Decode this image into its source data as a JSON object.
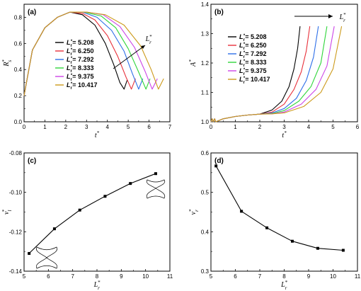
{
  "chart_data": [
    {
      "panel": "(a)",
      "type": "line",
      "xlabel": "t*",
      "ylabel": "Rs*",
      "xlim": [
        0,
        7
      ],
      "ylim": [
        0,
        0.9
      ],
      "xticks": [
        "0",
        "1",
        "2",
        "3",
        "4",
        "5",
        "6",
        "7"
      ],
      "yticks": [
        "0.0",
        "0.2",
        "0.4",
        "0.6",
        "0.8"
      ],
      "annotation": "Lr*",
      "legend_placement": "center-right",
      "series": [
        {
          "name": "Lr* = 5.208",
          "color": "#000000",
          "x": [
            0,
            0.4,
            1.0,
            1.6,
            2.2,
            2.8,
            3.4,
            3.9,
            4.3,
            4.6,
            4.8,
            4.95
          ],
          "y": [
            0.2,
            0.55,
            0.72,
            0.8,
            0.84,
            0.82,
            0.74,
            0.6,
            0.44,
            0.3,
            0.25,
            0.32
          ]
        },
        {
          "name": "Lr* = 6.250",
          "color": "#e8303a",
          "x": [
            0,
            0.4,
            1.0,
            1.6,
            2.2,
            2.8,
            3.4,
            4.0,
            4.5,
            4.9,
            5.15,
            5.35
          ],
          "y": [
            0.2,
            0.55,
            0.72,
            0.8,
            0.84,
            0.83,
            0.78,
            0.66,
            0.5,
            0.34,
            0.25,
            0.33
          ]
        },
        {
          "name": "Lr* = 7.292",
          "color": "#2d6ee8",
          "x": [
            0,
            0.4,
            1.0,
            1.6,
            2.2,
            2.8,
            3.5,
            4.2,
            4.8,
            5.2,
            5.5,
            5.7
          ],
          "y": [
            0.2,
            0.55,
            0.72,
            0.8,
            0.84,
            0.84,
            0.8,
            0.7,
            0.54,
            0.37,
            0.25,
            0.33
          ]
        },
        {
          "name": "Lr* = 8.333",
          "color": "#2fd63a",
          "x": [
            0,
            0.4,
            1.0,
            1.6,
            2.2,
            2.9,
            3.7,
            4.4,
            5.0,
            5.5,
            5.85,
            6.05
          ],
          "y": [
            0.2,
            0.55,
            0.72,
            0.8,
            0.84,
            0.84,
            0.81,
            0.72,
            0.56,
            0.38,
            0.25,
            0.33
          ]
        },
        {
          "name": "Lr* = 9.375",
          "color": "#cc44e6",
          "x": [
            0,
            0.4,
            1.0,
            1.6,
            2.2,
            3.0,
            3.8,
            4.6,
            5.3,
            5.8,
            6.15,
            6.4
          ],
          "y": [
            0.2,
            0.55,
            0.72,
            0.8,
            0.84,
            0.84,
            0.82,
            0.73,
            0.57,
            0.39,
            0.25,
            0.33
          ]
        },
        {
          "name": "Lr* = 10.417",
          "color": "#cc9a1a",
          "x": [
            0,
            0.4,
            1.0,
            1.6,
            2.2,
            3.0,
            3.9,
            4.8,
            5.6,
            6.1,
            6.45,
            6.7
          ],
          "y": [
            0.2,
            0.55,
            0.72,
            0.8,
            0.84,
            0.84,
            0.82,
            0.74,
            0.58,
            0.4,
            0.25,
            0.33
          ]
        }
      ]
    },
    {
      "panel": "(b)",
      "type": "line",
      "xlabel": "t*",
      "ylabel": "A*",
      "xlim": [
        0,
        6
      ],
      "ylim": [
        1.0,
        1.4
      ],
      "xticks": [
        "0",
        "1",
        "2",
        "3",
        "4",
        "5",
        "6"
      ],
      "yticks": [
        "1.0",
        "1.1",
        "1.2",
        "1.3",
        "1.4"
      ],
      "annotation": "Lr*",
      "legend_placement": "center-left",
      "series": [
        {
          "name": "Lr* = 5.208",
          "color": "#000000",
          "x": [
            0,
            0.05,
            0.1,
            0.15,
            0.2,
            0.5,
            1.0,
            1.5,
            2.0,
            2.5,
            2.9,
            3.2,
            3.4,
            3.55,
            3.65
          ],
          "y": [
            1.0,
            1.01,
            1.0,
            1.01,
            1.0,
            1.01,
            1.018,
            1.023,
            1.026,
            1.04,
            1.07,
            1.12,
            1.18,
            1.25,
            1.325
          ]
        },
        {
          "name": "Lr* = 6.250",
          "color": "#e8303a",
          "x": [
            0,
            0.05,
            0.1,
            0.15,
            0.2,
            0.5,
            1.0,
            1.5,
            2.0,
            2.5,
            3.0,
            3.4,
            3.7,
            3.9,
            4.05
          ],
          "y": [
            1.0,
            1.01,
            1.0,
            1.01,
            1.0,
            1.01,
            1.018,
            1.023,
            1.026,
            1.033,
            1.06,
            1.11,
            1.17,
            1.24,
            1.325
          ]
        },
        {
          "name": "Lr* = 7.292",
          "color": "#2d6ee8",
          "x": [
            0,
            0.05,
            0.1,
            0.15,
            0.2,
            0.5,
            1.0,
            1.5,
            2.0,
            2.5,
            3.0,
            3.5,
            3.9,
            4.2,
            4.4
          ],
          "y": [
            1.0,
            1.01,
            1.0,
            1.01,
            1.0,
            1.01,
            1.018,
            1.023,
            1.026,
            1.03,
            1.045,
            1.08,
            1.14,
            1.22,
            1.325
          ]
        },
        {
          "name": "Lr* = 8.333",
          "color": "#2fd63a",
          "x": [
            0,
            0.05,
            0.1,
            0.15,
            0.2,
            0.5,
            1.0,
            1.5,
            2.0,
            2.5,
            3.0,
            3.6,
            4.1,
            4.5,
            4.75
          ],
          "y": [
            1.0,
            1.01,
            1.0,
            1.01,
            1.0,
            1.01,
            1.018,
            1.023,
            1.026,
            1.028,
            1.038,
            1.07,
            1.12,
            1.2,
            1.325
          ]
        },
        {
          "name": "Lr* = 9.375",
          "color": "#cc44e6",
          "x": [
            0,
            0.05,
            0.1,
            0.15,
            0.2,
            0.5,
            1.0,
            1.5,
            2.0,
            2.5,
            3.0,
            3.7,
            4.3,
            4.75,
            5.05
          ],
          "y": [
            1.0,
            1.01,
            1.0,
            1.01,
            1.0,
            1.01,
            1.018,
            1.023,
            1.026,
            1.027,
            1.033,
            1.06,
            1.11,
            1.19,
            1.325
          ]
        },
        {
          "name": "Lr* = 10.417",
          "color": "#cc9a1a",
          "x": [
            0,
            0.05,
            0.1,
            0.15,
            0.2,
            0.5,
            1.0,
            1.5,
            2.0,
            2.5,
            3.0,
            3.8,
            4.5,
            5.0,
            5.35
          ],
          "y": [
            1.0,
            1.01,
            1.0,
            1.01,
            1.0,
            1.01,
            1.018,
            1.023,
            1.026,
            1.027,
            1.03,
            1.052,
            1.1,
            1.18,
            1.325
          ]
        }
      ]
    },
    {
      "panel": "(c)",
      "type": "line",
      "xlabel": "Lr*",
      "ylabel": "vl*",
      "xlim": [
        5,
        11
      ],
      "ylim": [
        -0.14,
        -0.08
      ],
      "xticks": [
        "5",
        "6",
        "7",
        "8",
        "9",
        "10",
        "11"
      ],
      "yticks": [
        "-0.14",
        "-0.12",
        "-0.10",
        "-0.08"
      ],
      "series": [
        {
          "name": "",
          "color": "#000000",
          "x": [
            5.208,
            6.25,
            7.292,
            8.333,
            9.375,
            10.417
          ],
          "y": [
            -0.131,
            -0.1185,
            -0.109,
            -0.102,
            -0.0955,
            -0.0905
          ]
        }
      ]
    },
    {
      "panel": "(d)",
      "type": "line",
      "xlabel": "Lr*",
      "ylabel": "vr*",
      "xlim": [
        5,
        11
      ],
      "ylim": [
        0.3,
        0.6
      ],
      "xticks": [
        "5",
        "6",
        "7",
        "8",
        "9",
        "10",
        "11"
      ],
      "yticks": [
        "0.3",
        "0.4",
        "0.5",
        "0.6"
      ],
      "series": [
        {
          "name": "",
          "color": "#000000",
          "x": [
            5.208,
            6.25,
            7.292,
            8.333,
            9.375,
            10.417
          ],
          "y": [
            0.567,
            0.452,
            0.41,
            0.376,
            0.358,
            0.353
          ]
        }
      ]
    }
  ]
}
